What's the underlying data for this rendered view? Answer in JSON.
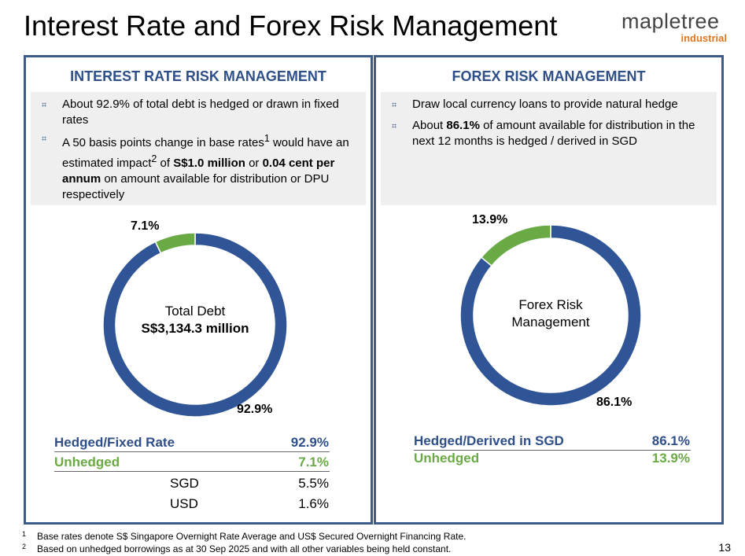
{
  "slide": {
    "title": "Interest Rate and Forex Risk Management",
    "page_number": "13"
  },
  "logo": {
    "name": "mapletree",
    "sub": "industrial"
  },
  "colors": {
    "hedged": "#2f5597",
    "unhedged": "#6aaa44",
    "heading": "#2f4f88"
  },
  "interest_rate": {
    "heading": "INTEREST RATE RISK MANAGEMENT",
    "bullet1": "About 92.9% of total debt is hedged or drawn in fixed rates",
    "bullet2": {
      "p1": "A 50 basis points change in base rates",
      "sup1": "1",
      "p2": " would have an estimated impact",
      "sup2": "2",
      "p3": " of ",
      "b1": "S$1.0 million",
      "p4": " or ",
      "b2": "0.04 cent per annum",
      "p5": " on amount available for distribution or DPU respectively"
    },
    "donut": {
      "center_line1": "Total Debt",
      "center_line2": "S$3,134.3 million",
      "hedged_label": "92.9%",
      "unhedged_label": "7.1%"
    },
    "table": {
      "hedged_label": "Hedged/Fixed Rate",
      "hedged_value": "92.9%",
      "unhedged_label": "Unhedged",
      "unhedged_value": "7.1%",
      "sgd_label": "SGD",
      "sgd_value": "5.5%",
      "usd_label": "USD",
      "usd_value": "1.6%"
    }
  },
  "forex": {
    "heading": "FOREX RISK MANAGEMENT",
    "bullet1": "Draw local currency loans to provide natural hedge",
    "bullet2": {
      "p1": "About ",
      "b1": "86.1%",
      "p2": " of amount available for distribution in the next 12 months is hedged / derived in SGD"
    },
    "donut": {
      "center_line1": "Forex Risk",
      "center_line2": "Management",
      "hedged_label": "86.1%",
      "unhedged_label": "13.9%"
    },
    "table": {
      "hedged_label": "Hedged/Derived in SGD",
      "hedged_value": "86.1%",
      "unhedged_label": "Unhedged",
      "unhedged_value": "13.9%"
    }
  },
  "chart_data": [
    {
      "type": "pie",
      "title": "Total Debt S$3,134.3 million",
      "categories": [
        "Hedged/Fixed Rate",
        "Unhedged"
      ],
      "values": [
        92.9,
        7.1
      ]
    },
    {
      "type": "pie",
      "title": "Forex Risk Management",
      "categories": [
        "Hedged/Derived in SGD",
        "Unhedged"
      ],
      "values": [
        86.1,
        13.9
      ]
    }
  ],
  "footnotes": [
    {
      "num": "1",
      "text": "Base rates denote S$ Singapore Overnight Rate Average and US$ Secured Overnight Financing Rate."
    },
    {
      "num": "2",
      "text": "Based on unhedged borrowings as at 30 Sep 2025 and with all other variables being held constant."
    }
  ]
}
